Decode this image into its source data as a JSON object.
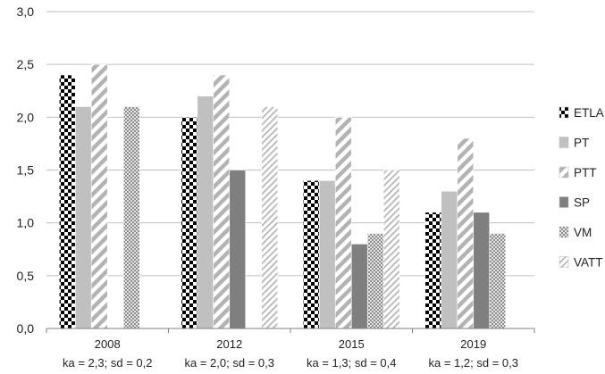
{
  "chart_data": {
    "type": "bar",
    "title": "",
    "xlabel": "",
    "ylabel": "",
    "ylim": [
      0,
      3
    ],
    "yticks": [
      "0,0",
      "0,5",
      "1,0",
      "1,5",
      "2,0",
      "2,5",
      "3,0"
    ],
    "grid": true,
    "legend_position": "right",
    "categories": [
      {
        "label": "2008",
        "sublabel": "ka = 2,3; sd = 0,2"
      },
      {
        "label": "2012",
        "sublabel": "ka = 2,0; sd = 0,3"
      },
      {
        "label": "2015",
        "sublabel": "ka = 1,3; sd = 0,4"
      },
      {
        "label": "2019",
        "sublabel": "ka = 1,2; sd = 0,3"
      }
    ],
    "series": [
      {
        "name": "ETLA",
        "pattern": "checker",
        "values": [
          2.4,
          2.0,
          1.4,
          1.1
        ]
      },
      {
        "name": "PT",
        "pattern": "light-gray",
        "values": [
          2.1,
          2.2,
          1.4,
          1.3
        ]
      },
      {
        "name": "PTT",
        "pattern": "wide-diagonal",
        "values": [
          2.5,
          2.4,
          2.0,
          1.8
        ]
      },
      {
        "name": "SP",
        "pattern": "dark-gray",
        "values": [
          null,
          1.5,
          0.8,
          1.1
        ]
      },
      {
        "name": "VM",
        "pattern": "small-checker",
        "values": [
          2.1,
          null,
          0.9,
          0.9
        ]
      },
      {
        "name": "VATT",
        "pattern": "narrow-diagonal",
        "values": [
          null,
          2.1,
          1.5,
          null
        ]
      }
    ],
    "colors": {
      "grid": "#bfbfbf",
      "axis": "#808080",
      "light_gray": "#c0c0c0",
      "dark_gray": "#7f7f7f"
    }
  }
}
